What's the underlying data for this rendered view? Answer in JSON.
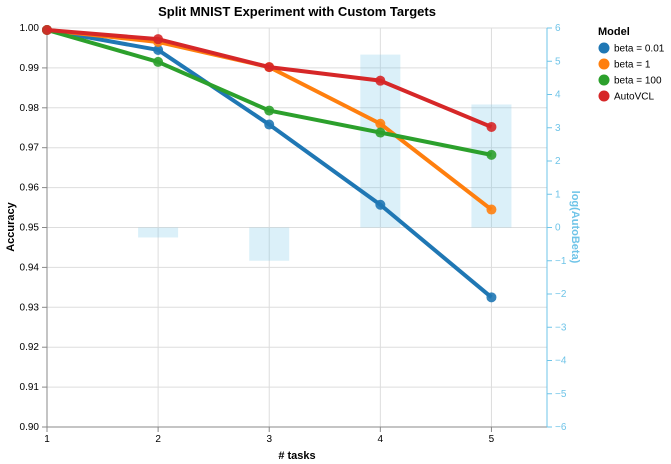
{
  "chart_data": {
    "type": "line",
    "title": "Split MNIST Experiment with Custom Targets",
    "xlabel": "# tasks",
    "ylabel": "Accuracy",
    "y2label": "log(AutoBeta)",
    "x": [
      1,
      2,
      3,
      4,
      5
    ],
    "xlim": [
      1,
      5.5
    ],
    "ylim": [
      0.9,
      1.0
    ],
    "y2lim": [
      -6,
      6
    ],
    "xticks": [
      "1",
      "2",
      "3",
      "4",
      "5"
    ],
    "yticks": [
      "0.90",
      "0.91",
      "0.92",
      "0.93",
      "0.94",
      "0.95",
      "0.96",
      "0.97",
      "0.98",
      "0.99",
      "1.00"
    ],
    "y2ticks": [
      "−6",
      "−5",
      "−4",
      "−3",
      "−2",
      "−1",
      "0",
      "1",
      "2",
      "3",
      "4",
      "5",
      "6"
    ],
    "grid": true,
    "legend": {
      "title": "Model",
      "position": "top-right"
    },
    "series": [
      {
        "name": "beta = 0.01",
        "color": "#1f77b4",
        "values": [
          0.9995,
          0.9945,
          0.9758,
          0.9557,
          0.9325
        ]
      },
      {
        "name": "beta = 1",
        "color": "#ff7f0e",
        "values": [
          0.9995,
          0.9965,
          0.9902,
          0.976,
          0.9545
        ]
      },
      {
        "name": "beta = 100",
        "color": "#2ca02c",
        "values": [
          0.9995,
          0.9915,
          0.9793,
          0.9738,
          0.9682
        ]
      },
      {
        "name": "AutoVCL",
        "color": "#d62728",
        "values": [
          0.9995,
          0.9972,
          0.9902,
          0.9868,
          0.9752
        ]
      }
    ],
    "bars": {
      "name": "log(AutoBeta)",
      "color": "#6fc4e8",
      "x": [
        2,
        3,
        4,
        5
      ],
      "values": [
        -0.3,
        -1.0,
        5.2,
        3.7
      ]
    }
  }
}
